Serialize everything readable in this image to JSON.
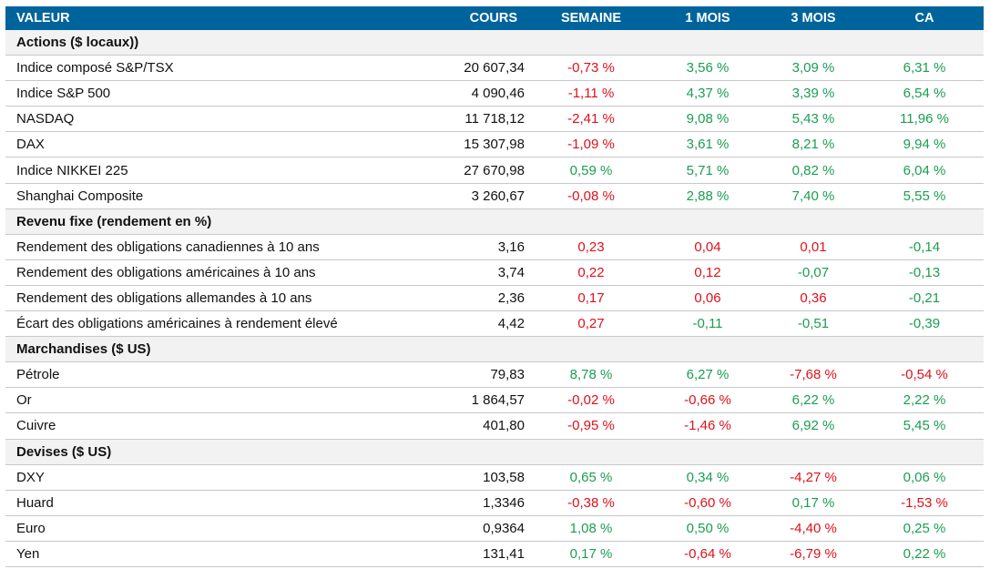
{
  "colors": {
    "header": "#00649c",
    "negative_red": "#e0101a",
    "positive_green": "#1a9e50",
    "section_bg": "#f2f2f2"
  },
  "headers": [
    "VALEUR",
    "COURS",
    "SEMAINE",
    "1 MOIS",
    "3 MOIS",
    "CA"
  ],
  "sections": [
    {
      "title": "Actions ($ locaux))",
      "rows": [
        {
          "name": "Indice composé S&P/TSX",
          "cours": "20 607,34",
          "vals": [
            [
              "-0,73 %",
              "r"
            ],
            [
              "3,56 %",
              "g"
            ],
            [
              "3,09 %",
              "g"
            ],
            [
              "6,31 %",
              "g"
            ]
          ]
        },
        {
          "name": "Indice S&P 500",
          "cours": "4 090,46",
          "vals": [
            [
              "-1,11 %",
              "r"
            ],
            [
              "4,37 %",
              "g"
            ],
            [
              "3,39 %",
              "g"
            ],
            [
              "6,54 %",
              "g"
            ]
          ]
        },
        {
          "name": "NASDAQ",
          "cours": "11 718,12",
          "vals": [
            [
              "-2,41 %",
              "r"
            ],
            [
              "9,08 %",
              "g"
            ],
            [
              "5,43 %",
              "g"
            ],
            [
              "11,96 %",
              "g"
            ]
          ]
        },
        {
          "name": "DAX",
          "cours": "15 307,98",
          "vals": [
            [
              "-1,09 %",
              "r"
            ],
            [
              "3,61 %",
              "g"
            ],
            [
              "8,21 %",
              "g"
            ],
            [
              "9,94 %",
              "g"
            ]
          ]
        },
        {
          "name": "Indice NIKKEI 225",
          "cours": "27 670,98",
          "vals": [
            [
              "0,59 %",
              "g"
            ],
            [
              "5,71 %",
              "g"
            ],
            [
              "0,82 %",
              "g"
            ],
            [
              "6,04 %",
              "g"
            ]
          ]
        },
        {
          "name": "Shanghai Composite",
          "cours": "3 260,67",
          "vals": [
            [
              "-0,08 %",
              "r"
            ],
            [
              "2,88 %",
              "g"
            ],
            [
              "7,40 %",
              "g"
            ],
            [
              "5,55 %",
              "g"
            ]
          ]
        }
      ]
    },
    {
      "title": "Revenu fixe (rendement en %)",
      "rows": [
        {
          "name": "Rendement des obligations canadiennes à 10 ans",
          "cours": "3,16",
          "vals": [
            [
              "0,23",
              "r"
            ],
            [
              "0,04",
              "r"
            ],
            [
              "0,01",
              "r"
            ],
            [
              "-0,14",
              "g"
            ]
          ]
        },
        {
          "name": "Rendement des obligations américaines à 10 ans",
          "cours": "3,74",
          "vals": [
            [
              "0,22",
              "r"
            ],
            [
              "0,12",
              "r"
            ],
            [
              "-0,07",
              "g"
            ],
            [
              "-0,13",
              "g"
            ]
          ]
        },
        {
          "name": "Rendement des obligations allemandes à 10 ans",
          "cours": "2,36",
          "vals": [
            [
              "0,17",
              "r"
            ],
            [
              "0,06",
              "r"
            ],
            [
              "0,36",
              "r"
            ],
            [
              "-0,21",
              "g"
            ]
          ]
        },
        {
          "name": "Écart des obligations américaines à rendement élevé",
          "cours": "4,42",
          "vals": [
            [
              "0,27",
              "r"
            ],
            [
              "-0,11",
              "g"
            ],
            [
              "-0,51",
              "g"
            ],
            [
              "-0,39",
              "g"
            ]
          ]
        }
      ]
    },
    {
      "title": "Marchandises ($ US)",
      "rows": [
        {
          "name": "Pétrole",
          "cours": "79,83",
          "vals": [
            [
              "8,78 %",
              "g"
            ],
            [
              "6,27 %",
              "g"
            ],
            [
              "-7,68 %",
              "r"
            ],
            [
              "-0,54 %",
              "r"
            ]
          ]
        },
        {
          "name": "Or",
          "cours": "1 864,57",
          "vals": [
            [
              "-0,02 %",
              "r"
            ],
            [
              "-0,66 %",
              "r"
            ],
            [
              "6,22 %",
              "g"
            ],
            [
              "2,22 %",
              "g"
            ]
          ]
        },
        {
          "name": "Cuivre",
          "cours": "401,80",
          "vals": [
            [
              "-0,95 %",
              "r"
            ],
            [
              "-1,46 %",
              "r"
            ],
            [
              "6,92 %",
              "g"
            ],
            [
              "5,45 %",
              "g"
            ]
          ]
        }
      ]
    },
    {
      "title": "Devises ($ US)",
      "rows": [
        {
          "name": "DXY",
          "cours": "103,58",
          "vals": [
            [
              "0,65 %",
              "g"
            ],
            [
              "0,34 %",
              "g"
            ],
            [
              "-4,27 %",
              "r"
            ],
            [
              "0,06 %",
              "g"
            ]
          ]
        },
        {
          "name": "Huard",
          "cours": "1,3346",
          "vals": [
            [
              "-0,38 %",
              "r"
            ],
            [
              "-0,60 %",
              "r"
            ],
            [
              "0,17 %",
              "g"
            ],
            [
              "-1,53 %",
              "r"
            ]
          ]
        },
        {
          "name": "Euro",
          "cours": "0,9364",
          "vals": [
            [
              "1,08 %",
              "g"
            ],
            [
              "0,50 %",
              "g"
            ],
            [
              "-4,40 %",
              "r"
            ],
            [
              "0,25 %",
              "g"
            ]
          ]
        },
        {
          "name": "Yen",
          "cours": "131,41",
          "vals": [
            [
              "0,17 %",
              "g"
            ],
            [
              "-0,64 %",
              "r"
            ],
            [
              "-6,79 %",
              "r"
            ],
            [
              "0,22 %",
              "g"
            ]
          ]
        }
      ]
    }
  ]
}
